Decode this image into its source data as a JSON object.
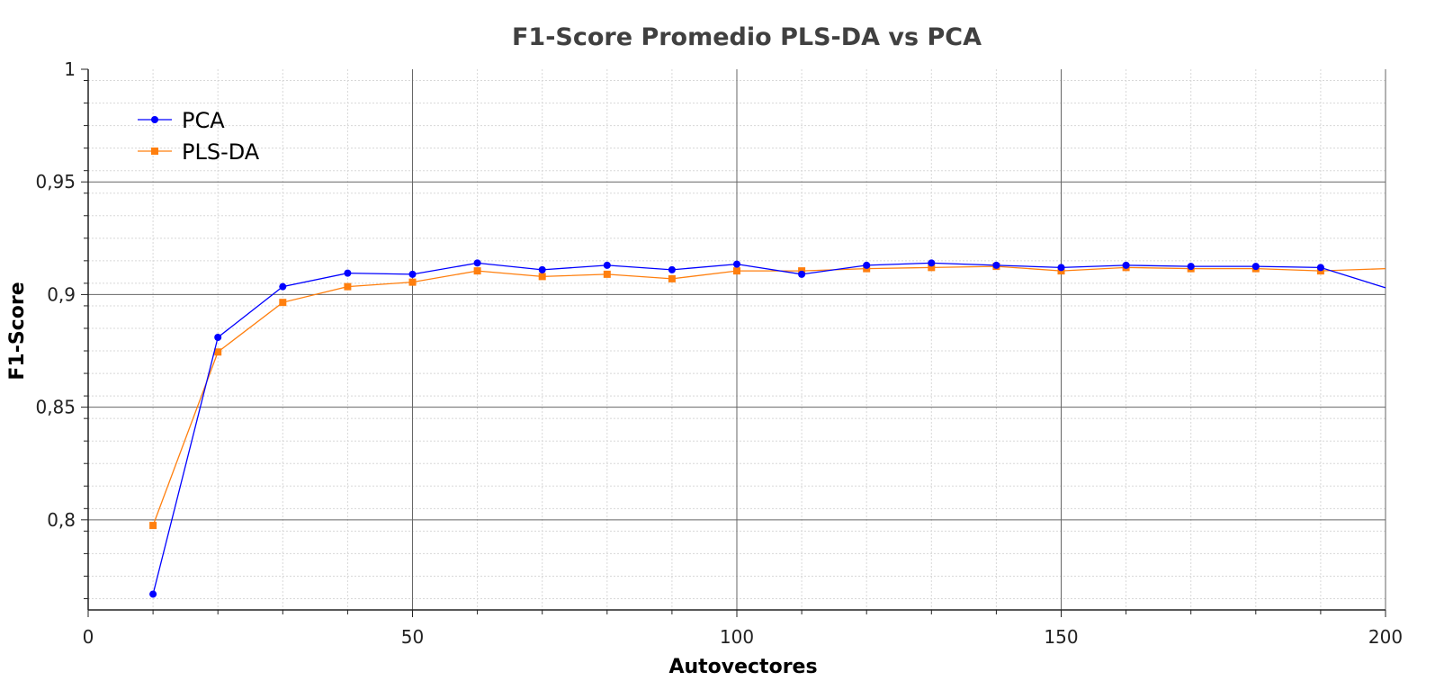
{
  "chart_data": {
    "type": "line",
    "title": "F1-Score Promedio PLS-DA vs PCA",
    "xlabel": "Autovectores",
    "ylabel": "F1-Score",
    "xlim": [
      0,
      200
    ],
    "ylim": [
      0.76,
      1.0
    ],
    "x_ticks": [
      "0",
      "50",
      "100",
      "150",
      "200"
    ],
    "y_ticks": [
      "0,8",
      "0,85",
      "0,9",
      "0,95",
      "1"
    ],
    "grid": true,
    "legend_position": "top-left",
    "x": [
      10,
      20,
      30,
      40,
      50,
      60,
      70,
      80,
      90,
      100,
      110,
      120,
      130,
      140,
      150,
      160,
      170,
      180,
      190,
      200
    ],
    "series": [
      {
        "name": "PCA",
        "color": "#0000ff",
        "marker": "circle",
        "values": [
          0.767,
          0.881,
          0.9035,
          0.9095,
          0.909,
          0.914,
          0.911,
          0.913,
          0.911,
          0.9135,
          0.909,
          0.913,
          0.914,
          0.913,
          0.912,
          0.913,
          0.9125,
          0.9125,
          0.912,
          0.903
        ]
      },
      {
        "name": "PLS-DA",
        "color": "#ff7f0e",
        "marker": "square",
        "values": [
          0.7975,
          0.8745,
          0.8965,
          0.9035,
          0.9055,
          0.9105,
          0.908,
          0.909,
          0.907,
          0.9105,
          0.9105,
          0.9115,
          0.912,
          0.9125,
          0.9105,
          0.912,
          0.9115,
          0.9115,
          0.9105,
          0.9115
        ]
      }
    ]
  }
}
